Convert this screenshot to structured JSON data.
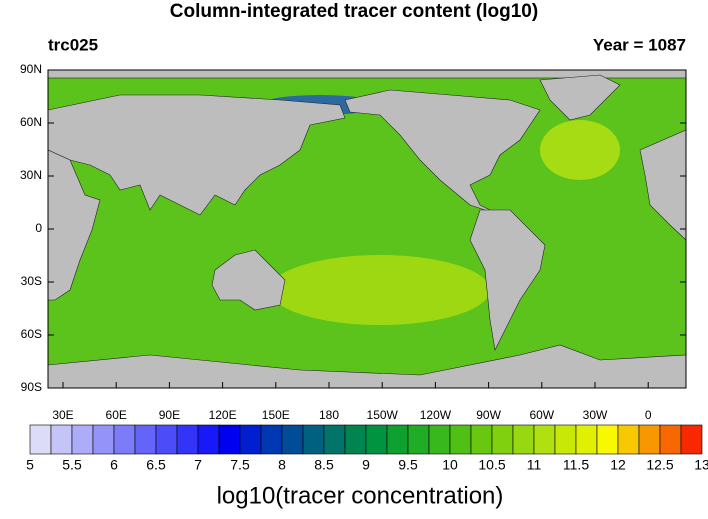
{
  "title": "Column-integrated tracer content (log10)",
  "left_label": "trc025",
  "right_label": "Year = 1087",
  "lat_ticks": [
    "90N",
    "60N",
    "30N",
    "0",
    "30S",
    "60S",
    "90S"
  ],
  "lon_ticks": [
    "30E",
    "60E",
    "90E",
    "120E",
    "150E",
    "180",
    "150W",
    "120W",
    "90W",
    "60W",
    "30W",
    "0"
  ],
  "colorbar": {
    "label": "log10(tracer concentration)",
    "ticks": [
      5,
      5.5,
      6,
      6.5,
      7,
      7.5,
      8,
      8.5,
      9,
      9.5,
      10,
      10.5,
      11,
      11.5,
      12,
      12.5,
      13
    ],
    "colors": [
      "#dcdcf8",
      "#c4c4f8",
      "#acacf8",
      "#9494f8",
      "#7c7cf8",
      "#6464f8",
      "#4c4cf8",
      "#3434f8",
      "#1818f8",
      "#0000f0",
      "#0020d0",
      "#0038b4",
      "#004c98",
      "#006080",
      "#007468",
      "#008450",
      "#009440",
      "#10a030",
      "#20ac24",
      "#38b81c",
      "#50c014",
      "#68c810",
      "#80d010",
      "#98d810",
      "#b0e010",
      "#c8e808",
      "#e0f000",
      "#f8f800",
      "#f8c800",
      "#f89800",
      "#f86800",
      "#f82800"
    ]
  }
}
